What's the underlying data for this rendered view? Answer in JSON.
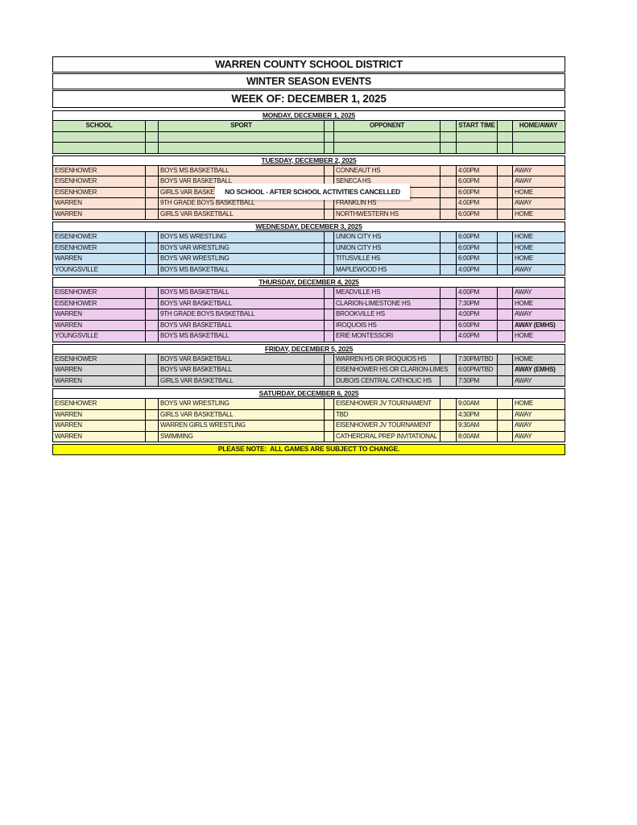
{
  "titles": {
    "district": "WARREN COUNTY SCHOOL DISTRICT",
    "season": "WINTER SEASON EVENTS",
    "week": "WEEK OF: DECEMBER 1, 2025"
  },
  "column_headers": [
    "SCHOOL",
    "SPORT",
    "OPPONENT",
    "START TIME",
    "HOME/AWAY"
  ],
  "overlay_notice": "NO SCHOOL - AFTER SCHOOL ACTIVITIES CANCELLED",
  "footer_note": "PLEASE NOTE:  ALL GAMES ARE SUBJECT TO CHANGE.",
  "colors": {
    "monday": "#cbe7c0",
    "tuesday": "#fbe2d4",
    "wednesday": "#c8e1f3",
    "thursday": "#edccee",
    "friday": "#d9d9d9",
    "saturday": "#fbf8d2",
    "note": "#ffff00",
    "border": "#000000"
  },
  "sections": [
    {
      "day_header": "MONDAY, DECEMBER 1, 2025",
      "color_key": "monday",
      "show_column_headers": true,
      "rows": [
        {
          "school": "",
          "sport": "",
          "opponent": "",
          "time": "",
          "home_away": ""
        },
        {
          "school": "",
          "sport": "",
          "opponent": "",
          "time": "",
          "home_away": ""
        }
      ]
    },
    {
      "day_header": "TUESDAY, DECEMBER 2, 2025",
      "color_key": "tuesday",
      "rows": [
        {
          "school": "EISENHOWER",
          "sport": "BOYS MS BASKETBALL",
          "opponent": "CONNEAUT HS",
          "time": "4:00PM",
          "home_away": "AWAY"
        },
        {
          "school": "EISENHOWER",
          "sport": "BOYS VAR BASKETBALL",
          "opponent": "SENECA HS",
          "time": "6:00PM",
          "home_away": "AWAY"
        },
        {
          "school": "EISENHOWER",
          "sport": "GIRLS VAR BASKETBALL",
          "opponent": "",
          "time": "6:00PM",
          "home_away": "HOME"
        },
        {
          "school": "WARREN",
          "sport": "9TH GRADE BOYS BASKETBALL",
          "opponent": "FRANKLIN HS",
          "time": "4:00PM",
          "home_away": "AWAY"
        },
        {
          "school": "WARREN",
          "sport": "GIRLS VAR BASKETBALL",
          "opponent": "NORTHWESTERN HS",
          "time": "6:00PM",
          "home_away": "HOME"
        }
      ]
    },
    {
      "day_header": "WEDNESDAY, DECEMBER 3, 2025",
      "color_key": "wednesday",
      "rows": [
        {
          "school": "EISENHOWER",
          "sport": "BOYS MS WRESTLING",
          "opponent": "UNION CITY HS",
          "time": "6:00PM",
          "home_away": "HOME"
        },
        {
          "school": "EISENHOWER",
          "sport": "BOYS VAR WRESTLING",
          "opponent": "UNION CITY HS",
          "time": "6:00PM",
          "home_away": "HOME"
        },
        {
          "school": "WARREN",
          "sport": "BOYS VAR WRESTLING",
          "opponent": "TITUSVILLE HS",
          "time": "6:00PM",
          "home_away": "HOME"
        },
        {
          "school": "YOUNGSVILLE",
          "sport": "BOYS MS BASKETBALL",
          "opponent": "MAPLEWOOD HS",
          "time": "4:00PM",
          "home_away": "AWAY"
        }
      ]
    },
    {
      "day_header": "THURSDAY, DECEMBER 4, 2025",
      "color_key": "thursday",
      "rows": [
        {
          "school": "EISENHOWER",
          "sport": "BOYS MS BASKETBALL",
          "opponent": "MEADVILLE HS",
          "time": "4:00PM",
          "home_away": "AWAY"
        },
        {
          "school": "EISENHOWER",
          "sport": "BOYS VAR BASKETBALL",
          "opponent": "CLARION-LIMESTONE HS",
          "time": "7:30PM",
          "home_away": "HOME"
        },
        {
          "school": "WARREN",
          "sport": "9TH GRADE BOYS BASKETBALL",
          "opponent": "BROOKVILLE HS",
          "time": "4:00PM",
          "home_away": "AWAY"
        },
        {
          "school": "WARREN",
          "sport": "BOYS VAR BASKETBALL",
          "opponent": "IROQUOIS HS",
          "time": "6:00PM",
          "home_away": "AWAY (EMHS)",
          "home_away_bold": true
        },
        {
          "school": "YOUNGSVILLE",
          "sport": "BOYS MS BASKETBALL",
          "opponent": "ERIE MONTESSORI",
          "time": "4:00PM",
          "home_away": "HOME"
        }
      ]
    },
    {
      "day_header": "FRIDAY, DECEMBER 5, 2025",
      "color_key": "friday",
      "rows": [
        {
          "school": "EISENHOWER",
          "sport": "BOYS VAR BASKETBALL",
          "opponent": "WARREN HS OR IROQUIOS HS",
          "time": "7:30PM/TBD",
          "home_away": "HOME"
        },
        {
          "school": "WARREN",
          "sport": "BOYS VAR BASKETBALL",
          "opponent": "EISENHOWER HS OR CLARION-LIMES",
          "time": "6:00PM/TBD",
          "home_away": "AWAY (EMHS)",
          "home_away_bold": true,
          "wide_opponent": true
        },
        {
          "school": "WARREN",
          "sport": "GIRLS VAR BASKETBALL",
          "opponent": "DUBOIS CENTRAL CATHOLIC HS",
          "time": "7:30PM",
          "home_away": "AWAY"
        }
      ]
    },
    {
      "day_header": "SATURDAY, DECEMBER 6, 2025",
      "color_key": "saturday",
      "rows": [
        {
          "school": "EISENHOWER",
          "sport": "BOYS VAR WRESTLING",
          "opponent": "EISENHOWER JV TOURNAMENT",
          "time": "9:00AM",
          "home_away": "HOME"
        },
        {
          "school": "WARREN",
          "sport": "GIRLS VAR BASKETBALL",
          "opponent": "TBD",
          "time": "4:30PM",
          "home_away": "AWAY"
        },
        {
          "school": "WARREN",
          "sport": "WARREN GIRLS WRESTLING",
          "opponent": "EISENHOWER JV TOURNAMENT",
          "time": "9:30AM",
          "home_away": "AWAY"
        },
        {
          "school": "WARREN",
          "sport": "SWIMMING",
          "opponent": "CATHERDRAL PREP INVITATIONAL",
          "time": "8:00AM",
          "home_away": "AWAY"
        }
      ]
    }
  ]
}
